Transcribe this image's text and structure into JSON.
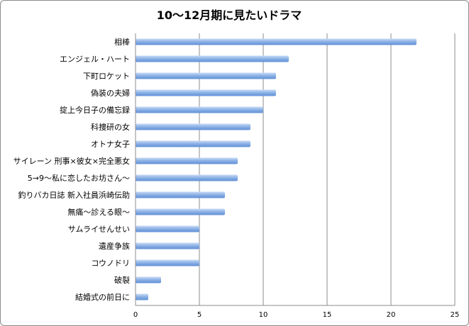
{
  "chart_data": {
    "type": "bar",
    "orientation": "horizontal",
    "title": "10〜12月期に見たいドラマ",
    "xlabel": "",
    "ylabel": "",
    "categories": [
      "相棒",
      "エンジェル・ハート",
      "下町ロケット",
      "偽装の夫婦",
      "掟上今日子の備忘録",
      "科捜研の女",
      "オトナ女子",
      "サイレーン 刑事×彼女×完全悪女",
      "5→9〜私に恋したお坊さん〜",
      "釣りバカ日誌  新入社員浜崎伝助",
      "無痛〜診える眼〜",
      "サムライせんせい",
      "遺産争族",
      "コウノドリ",
      "破裂",
      "結婚式の前日に"
    ],
    "values": [
      22,
      12,
      11,
      11,
      10,
      9,
      9,
      8,
      8,
      7,
      7,
      5,
      5,
      5,
      2,
      1
    ],
    "xlim": [
      0,
      25
    ],
    "xticks": [
      0,
      5,
      10,
      15,
      20,
      25
    ],
    "grid": true,
    "legend": "none",
    "bar_color": "#7ea6e0"
  }
}
